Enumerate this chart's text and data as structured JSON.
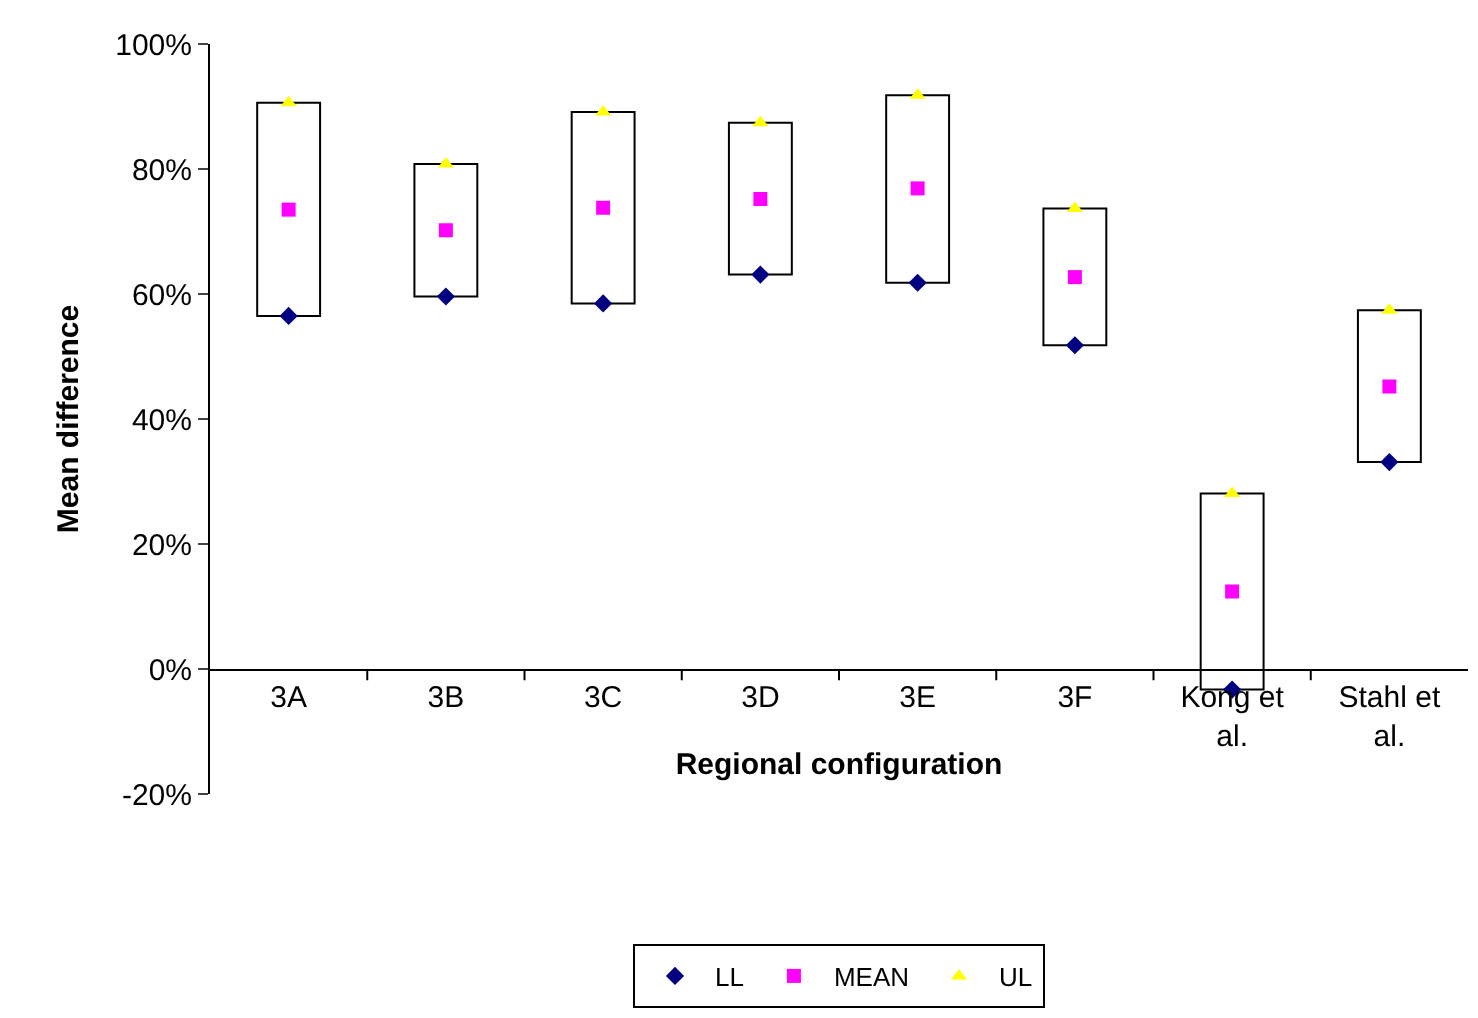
{
  "chart_data": {
    "type": "scatter",
    "xlabel": "Regional configuration",
    "ylabel": "Mean difference",
    "categories": [
      "3A",
      "3B",
      "3C",
      "3D",
      "3E",
      "3F",
      "Kong et al.",
      "Stahl et al."
    ],
    "series": [
      {
        "type": "bar",
        "color": "#ffffff",
        "base": [
          56.5,
          59.6,
          58.5,
          63.1,
          61.8,
          51.8,
          -3.3,
          33.1
        ],
        "values": [
          34.1,
          21.2,
          30.6,
          24.3,
          30.0,
          21.9,
          31.4,
          24.3
        ]
      },
      {
        "name": "LL",
        "color": "#000080",
        "marker": "diamond",
        "values": [
          56.5,
          59.6,
          58.5,
          63.1,
          61.8,
          51.8,
          -3.3,
          33.1
        ]
      },
      {
        "name": "MEAN",
        "color": "#ff00ff",
        "marker": "square",
        "values": [
          73.5,
          70.2,
          73.8,
          75.2,
          76.9,
          62.7,
          12.4,
          45.2
        ]
      },
      {
        "name": "UL",
        "color": "#ffff00",
        "marker": "triangle",
        "values": [
          90.6,
          80.8,
          89.1,
          87.4,
          91.8,
          73.7,
          28.1,
          57.4
        ]
      }
    ],
    "ylim": [
      -20,
      100
    ],
    "yticks": [
      {
        "value": -20,
        "label": "-20%"
      },
      {
        "value": 0,
        "label": "0%"
      },
      {
        "value": 20,
        "label": "20%"
      },
      {
        "value": 40,
        "label": "40%"
      },
      {
        "value": 60,
        "label": "60%"
      },
      {
        "value": 80,
        "label": "80%"
      },
      {
        "value": 100,
        "label": "100%"
      }
    ],
    "grid": false,
    "legend": "bottom"
  }
}
